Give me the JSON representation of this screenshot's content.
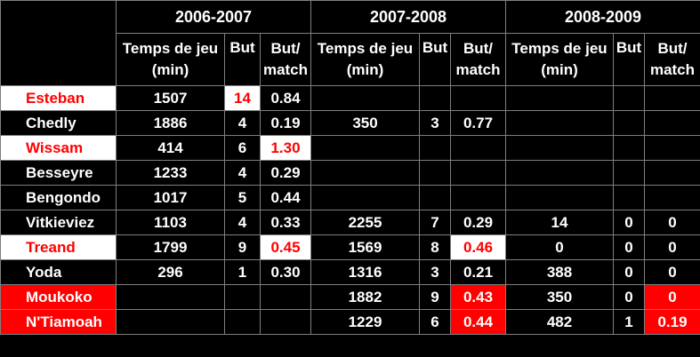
{
  "seasons": [
    "2006-2007",
    "2007-2008",
    "2008-2009"
  ],
  "subheaders": {
    "minutes_line1": "Temps de jeu",
    "minutes_line2": "(min)",
    "goals": "But",
    "ratio_line1": "But/",
    "ratio_line2": "match"
  },
  "players": [
    {
      "name": "Esteban",
      "s1": [
        "1507",
        "14",
        "0.84"
      ],
      "s2": [
        "",
        "",
        ""
      ],
      "s3": [
        "",
        "",
        ""
      ]
    },
    {
      "name": "Chedly",
      "s1": [
        "1886",
        "4",
        "0.19"
      ],
      "s2": [
        "350",
        "3",
        "0.77"
      ],
      "s3": [
        "",
        "",
        ""
      ]
    },
    {
      "name": "Wissam",
      "s1": [
        "414",
        "6",
        "1.30"
      ],
      "s2": [
        "",
        "",
        ""
      ],
      "s3": [
        "",
        "",
        ""
      ]
    },
    {
      "name": "Besseyre",
      "s1": [
        "1233",
        "4",
        "0.29"
      ],
      "s2": [
        "",
        "",
        ""
      ],
      "s3": [
        "",
        "",
        ""
      ]
    },
    {
      "name": "Bengondo",
      "s1": [
        "1017",
        "5",
        "0.44"
      ],
      "s2": [
        "",
        "",
        ""
      ],
      "s3": [
        "",
        "",
        ""
      ]
    },
    {
      "name": "Vitkieviez",
      "s1": [
        "1103",
        "4",
        "0.33"
      ],
      "s2": [
        "2255",
        "7",
        "0.29"
      ],
      "s3": [
        "14",
        "0",
        "0"
      ]
    },
    {
      "name": "Treand",
      "s1": [
        "1799",
        "9",
        "0.45"
      ],
      "s2": [
        "1569",
        "8",
        "0.46"
      ],
      "s3": [
        "0",
        "0",
        "0"
      ]
    },
    {
      "name": "Yoda",
      "s1": [
        "296",
        "1",
        "0.30"
      ],
      "s2": [
        "1316",
        "3",
        "0.21"
      ],
      "s3": [
        "388",
        "0",
        "0"
      ]
    },
    {
      "name": "Moukoko",
      "s1": [
        "",
        "",
        ""
      ],
      "s2": [
        "1882",
        "9",
        "0.43"
      ],
      "s3": [
        "350",
        "0",
        "0"
      ]
    },
    {
      "name": "N'Tiamoah",
      "s1": [
        "",
        "",
        ""
      ],
      "s2": [
        "1229",
        "6",
        "0.44"
      ],
      "s3": [
        "482",
        "1",
        "0.19"
      ]
    }
  ],
  "colors": {
    "background": "#000000",
    "text": "#ffffff",
    "highlight_red": "#ff0000",
    "highlight_white": "#ffffff",
    "grid": "#7f7f7f"
  }
}
